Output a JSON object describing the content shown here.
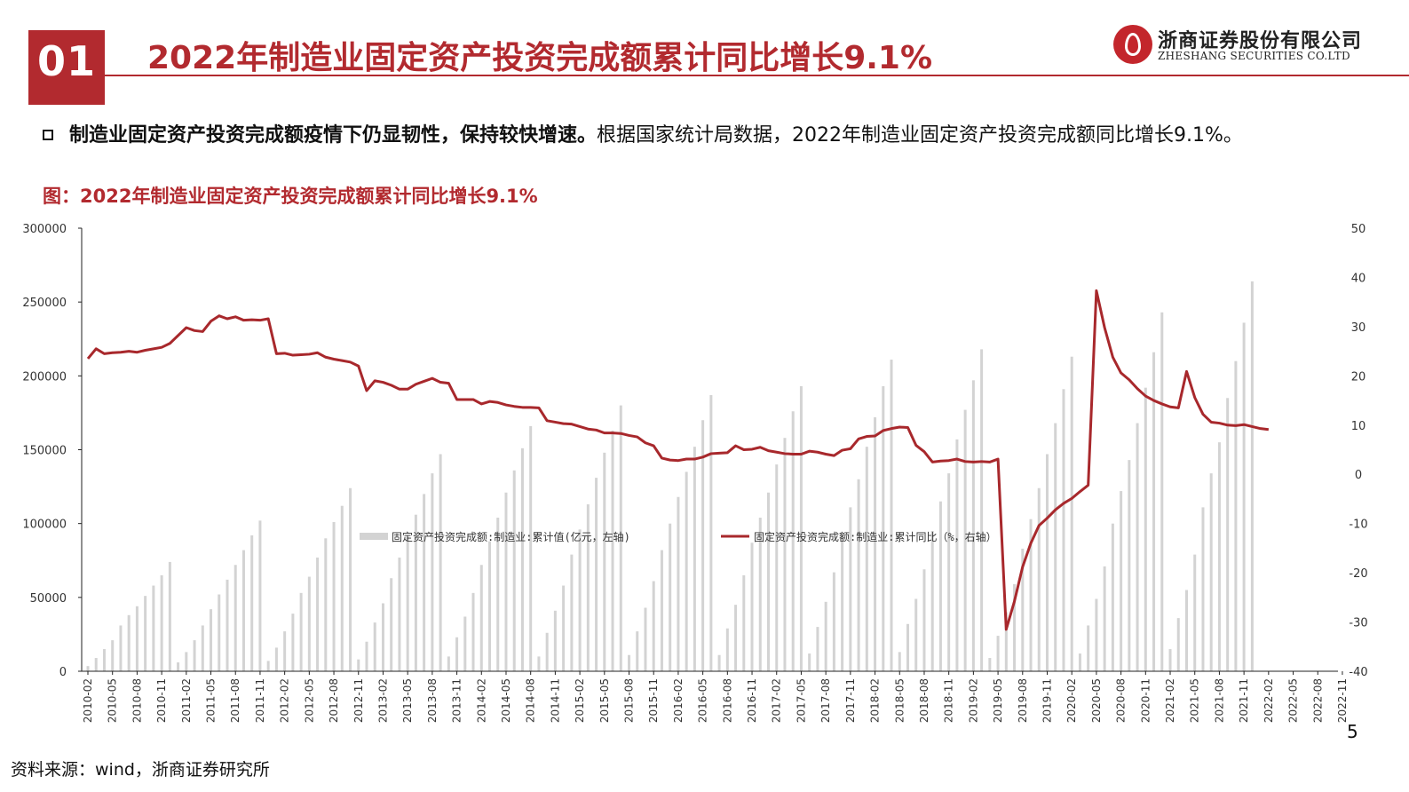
{
  "header": {
    "section_number": "01",
    "title": "2022年制造业固定资产投资完成额累计同比增长9.1%"
  },
  "logo": {
    "name_cn": "浙商证券股份有限公司",
    "name_en": "ZHESHANG SECURITIES CO.LTD"
  },
  "bullet": {
    "bold_text": "制造业固定资产投资完成额疫情下仍显韧性，保持较快增速。",
    "text": "根据国家统计局数据，2022年制造业固定资产投资完成额同比增长9.1%。"
  },
  "figure_title": "图：2022年制造业固定资产投资完成额累计同比增长9.1%",
  "source": "资料来源：wind，浙商证券研究所",
  "page_number": "5",
  "chart_data": {
    "type": "bar+line",
    "colors": {
      "bar": "#d3d3d3",
      "line": "#a8282c"
    },
    "left_axis": {
      "ylim": [
        0,
        300000
      ],
      "ticks": [
        0,
        50000,
        100000,
        150000,
        200000,
        250000,
        300000
      ]
    },
    "right_axis": {
      "ylim": [
        -40,
        50
      ],
      "ticks": [
        -40,
        -30,
        -20,
        -10,
        0,
        10,
        20,
        30,
        40,
        50
      ]
    },
    "x_tick_labels": [
      "2010-02",
      "2010-05",
      "2010-08",
      "2010-11",
      "2011-02",
      "2011-05",
      "2011-08",
      "2011-11",
      "2012-02",
      "2012-05",
      "2012-08",
      "2012-11",
      "2013-02",
      "2013-05",
      "2013-08",
      "2013-11",
      "2014-02",
      "2014-05",
      "2014-08",
      "2014-11",
      "2015-02",
      "2015-05",
      "2015-08",
      "2015-11",
      "2016-02",
      "2016-05",
      "2016-08",
      "2016-11",
      "2017-02",
      "2017-05",
      "2017-08",
      "2017-11",
      "2018-02",
      "2018-05",
      "2018-08",
      "2018-11",
      "2019-02",
      "2019-05",
      "2019-08",
      "2019-11",
      "2020-02",
      "2020-05",
      "2020-08",
      "2020-11",
      "2021-02",
      "2021-05",
      "2021-08",
      "2021-11",
      "2022-02",
      "2022-05",
      "2022-08",
      "2022-11"
    ],
    "legend": [
      {
        "label": "固定资产投资完成额:制造业:累计值(亿元，左轴)",
        "kind": "bar"
      },
      {
        "label": "固定资产投资完成额:制造业:累计同比（%，右轴）",
        "kind": "line"
      }
    ],
    "series": [
      {
        "name": "固定资产投资完成额:制造业:累计值(亿元，左轴)",
        "axis": "left",
        "values": [
          3500,
          9000,
          15000,
          21000,
          31000,
          38000,
          44000,
          51000,
          58000,
          65000,
          74000,
          6000,
          13000,
          21000,
          31000,
          42000,
          52000,
          62000,
          72000,
          82000,
          92000,
          102000,
          7000,
          16000,
          27000,
          39000,
          53000,
          64000,
          77000,
          90000,
          101000,
          112000,
          124000,
          8000,
          20000,
          33000,
          46000,
          63000,
          77000,
          91000,
          106000,
          120000,
          134000,
          147000,
          10000,
          23000,
          37000,
          53000,
          72000,
          88000,
          104000,
          121000,
          136000,
          151000,
          166000,
          10000,
          26000,
          41000,
          58000,
          79000,
          96000,
          113000,
          131000,
          148000,
          163000,
          180000,
          11000,
          27000,
          43000,
          61000,
          82000,
          100000,
          118000,
          135000,
          152000,
          170000,
          187000,
          11000,
          29000,
          45000,
          65000,
          87000,
          104000,
          121000,
          140000,
          158000,
          176000,
          193000,
          12000,
          30000,
          47000,
          67000,
          92000,
          111000,
          130000,
          152000,
          172000,
          193000,
          211000,
          13000,
          32000,
          49000,
          69000,
          95000,
          115000,
          134000,
          157000,
          177000,
          197000,
          218000,
          9000,
          24000,
          40000,
          59000,
          83000,
          103000,
          124000,
          147000,
          168000,
          191000,
          213000,
          12000,
          31000,
          49000,
          71000,
          100000,
          122000,
          143000,
          168000,
          192000,
          216000,
          243000,
          15000,
          36000,
          55000,
          79000,
          111000,
          134000,
          155000,
          185000,
          210000,
          236000,
          264000
        ]
      },
      {
        "name": "固定资产投资完成额:制造业:累计同比（%，右轴）",
        "axis": "right",
        "values": [
          23.5,
          25.5,
          24.5,
          24.7,
          24.8,
          25.0,
          24.8,
          25.2,
          25.5,
          25.8,
          26.6,
          28.2,
          29.8,
          29.2,
          29.0,
          31.1,
          32.2,
          31.6,
          32.0,
          31.3,
          31.4,
          31.3,
          31.6,
          24.5,
          24.6,
          24.2,
          24.3,
          24.4,
          24.7,
          23.8,
          23.4,
          23.1,
          22.8,
          22.0,
          17.0,
          19.0,
          18.7,
          18.1,
          17.3,
          17.3,
          18.3,
          18.9,
          19.5,
          18.7,
          18.5,
          15.2,
          15.2,
          15.2,
          14.3,
          14.8,
          14.6,
          14.1,
          13.8,
          13.6,
          13.6,
          13.5,
          10.9,
          10.6,
          10.3,
          10.2,
          9.7,
          9.2,
          9.0,
          8.4,
          8.4,
          8.3,
          7.9,
          7.6,
          6.4,
          5.8,
          3.3,
          2.9,
          2.8,
          3.1,
          3.1,
          3.5,
          4.2,
          4.3,
          4.4,
          5.8,
          5.0,
          5.1,
          5.5,
          4.8,
          4.5,
          4.2,
          4.1,
          4.1,
          4.7,
          4.5,
          4.1,
          3.8,
          4.9,
          5.2,
          7.2,
          7.7,
          7.8,
          8.9,
          9.3,
          9.6,
          9.5,
          5.9,
          4.6,
          2.5,
          2.7,
          2.8,
          3.1,
          2.6,
          2.5,
          2.6,
          2.5,
          3.1,
          -31.5,
          -25.8,
          -18.8,
          -14.0,
          -10.4,
          -8.9,
          -7.2,
          -5.9,
          -4.9,
          -3.5,
          -2.2,
          37.3,
          29.8,
          23.8,
          20.6,
          19.2,
          17.4,
          15.9,
          15.0,
          14.3,
          13.7,
          13.5,
          20.9,
          15.6,
          12.2,
          10.6,
          10.4,
          10.0,
          9.9,
          10.1,
          9.7,
          9.3,
          9.1
        ]
      }
    ]
  }
}
